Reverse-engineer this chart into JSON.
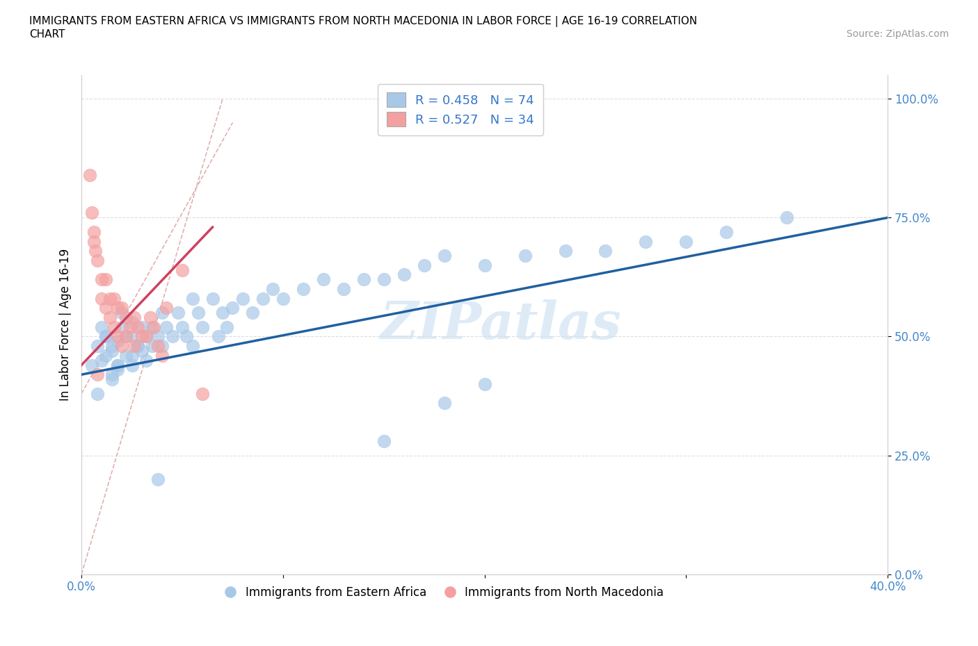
{
  "title": "IMMIGRANTS FROM EASTERN AFRICA VS IMMIGRANTS FROM NORTH MACEDONIA IN LABOR FORCE | AGE 16-19 CORRELATION\nCHART",
  "source": "Source: ZipAtlas.com",
  "ylabel": "In Labor Force | Age 16-19",
  "xlim": [
    0.0,
    0.4
  ],
  "ylim": [
    0.0,
    1.05
  ],
  "yticks": [
    0.0,
    0.25,
    0.5,
    0.75,
    1.0
  ],
  "ytick_labels": [
    "0.0%",
    "25.0%",
    "50.0%",
    "75.0%",
    "100.0%"
  ],
  "xticks": [
    0.0,
    0.1,
    0.2,
    0.3,
    0.4
  ],
  "xtick_labels": [
    "0.0%",
    "",
    "",
    "",
    "40.0%"
  ],
  "blue_color": "#a8c8e8",
  "pink_color": "#f4a0a0",
  "blue_line_color": "#2060a0",
  "pink_line_color": "#d04060",
  "diag_color": "#e0b0b0",
  "R_blue": 0.458,
  "N_blue": 74,
  "R_pink": 0.527,
  "N_pink": 34,
  "watermark": "ZIPatlas",
  "blue_scatter_x": [
    0.005,
    0.008,
    0.01,
    0.012,
    0.015,
    0.01,
    0.012,
    0.015,
    0.018,
    0.008,
    0.012,
    0.015,
    0.018,
    0.02,
    0.015,
    0.018,
    0.02,
    0.025,
    0.022,
    0.018,
    0.025,
    0.028,
    0.022,
    0.025,
    0.03,
    0.028,
    0.025,
    0.032,
    0.03,
    0.035,
    0.032,
    0.038,
    0.04,
    0.035,
    0.042,
    0.045,
    0.04,
    0.048,
    0.05,
    0.055,
    0.052,
    0.058,
    0.055,
    0.06,
    0.065,
    0.07,
    0.068,
    0.075,
    0.072,
    0.08,
    0.085,
    0.09,
    0.095,
    0.1,
    0.11,
    0.12,
    0.13,
    0.14,
    0.15,
    0.16,
    0.17,
    0.18,
    0.2,
    0.22,
    0.24,
    0.26,
    0.28,
    0.3,
    0.32,
    0.35,
    0.18,
    0.2,
    0.15,
    0.038
  ],
  "blue_scatter_y": [
    0.44,
    0.48,
    0.45,
    0.5,
    0.42,
    0.52,
    0.46,
    0.48,
    0.44,
    0.38,
    0.5,
    0.47,
    0.43,
    0.55,
    0.41,
    0.49,
    0.52,
    0.46,
    0.5,
    0.44,
    0.53,
    0.48,
    0.46,
    0.5,
    0.52,
    0.48,
    0.44,
    0.5,
    0.47,
    0.52,
    0.45,
    0.5,
    0.55,
    0.48,
    0.52,
    0.5,
    0.48,
    0.55,
    0.52,
    0.58,
    0.5,
    0.55,
    0.48,
    0.52,
    0.58,
    0.55,
    0.5,
    0.56,
    0.52,
    0.58,
    0.55,
    0.58,
    0.6,
    0.58,
    0.6,
    0.62,
    0.6,
    0.62,
    0.62,
    0.63,
    0.65,
    0.67,
    0.65,
    0.67,
    0.68,
    0.68,
    0.7,
    0.7,
    0.72,
    0.75,
    0.36,
    0.4,
    0.28,
    0.2
  ],
  "pink_scatter_x": [
    0.004,
    0.005,
    0.006,
    0.007,
    0.008,
    0.006,
    0.008,
    0.01,
    0.01,
    0.012,
    0.012,
    0.014,
    0.014,
    0.016,
    0.016,
    0.018,
    0.018,
    0.02,
    0.02,
    0.022,
    0.022,
    0.024,
    0.026,
    0.026,
    0.028,
    0.03,
    0.032,
    0.034,
    0.036,
    0.038,
    0.04,
    0.042,
    0.05,
    0.06
  ],
  "pink_scatter_y": [
    0.84,
    0.76,
    0.72,
    0.68,
    0.42,
    0.7,
    0.66,
    0.62,
    0.58,
    0.62,
    0.56,
    0.58,
    0.54,
    0.58,
    0.52,
    0.56,
    0.5,
    0.56,
    0.48,
    0.54,
    0.5,
    0.52,
    0.54,
    0.48,
    0.52,
    0.5,
    0.5,
    0.54,
    0.52,
    0.48,
    0.46,
    0.56,
    0.64,
    0.38
  ],
  "blue_line_x": [
    0.0,
    0.4
  ],
  "blue_line_y": [
    0.42,
    0.75
  ],
  "pink_line_x": [
    0.0,
    0.065
  ],
  "pink_line_y": [
    0.44,
    0.73
  ]
}
